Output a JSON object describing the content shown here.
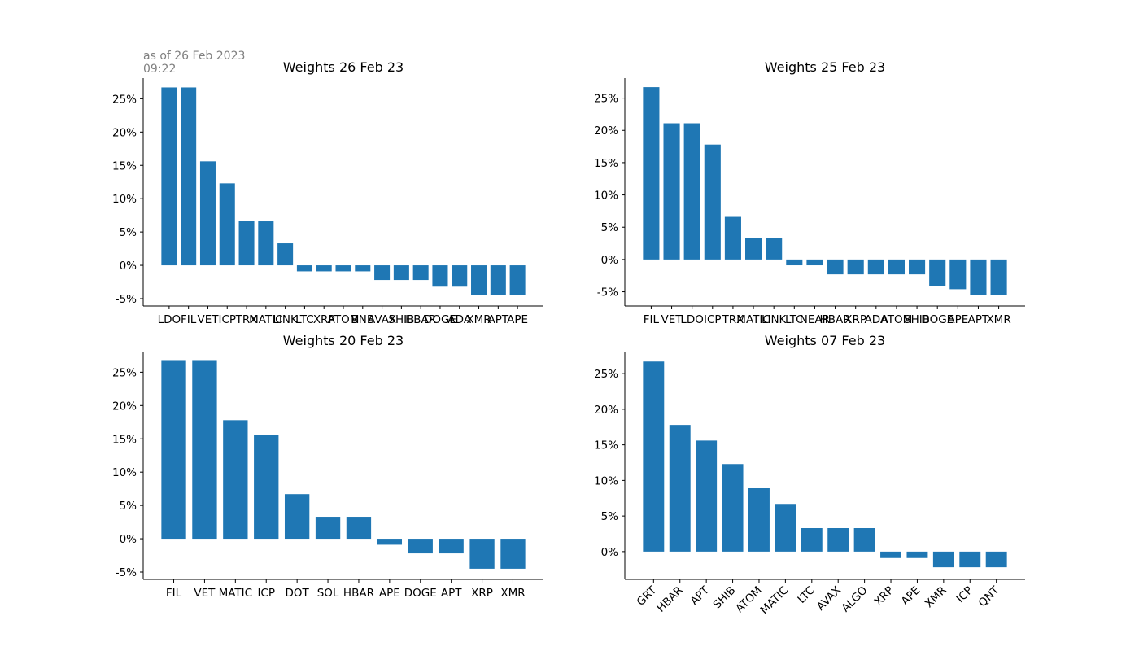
{
  "annotation": {
    "line1": "as of 26 Feb 2023",
    "line2": "09:22"
  },
  "style": {
    "bar_color": "#1f77b4",
    "axis_color": "#000000",
    "annotation_color": "#808080"
  },
  "chart_data": [
    {
      "type": "bar",
      "title": "Weights 26 Feb 23",
      "categories": [
        "LDO",
        "FIL",
        "VET",
        "ICP",
        "TRX",
        "MATIC",
        "LINK",
        "LTC",
        "XRP",
        "ATOM",
        "BNB",
        "AVAX",
        "SHIB",
        "HBAR",
        "DOGE",
        "ADA",
        "XMR",
        "APT",
        "APE"
      ],
      "values": [
        26.7,
        26.7,
        15.6,
        12.3,
        6.7,
        6.6,
        3.3,
        -0.9,
        -0.9,
        -0.9,
        -0.9,
        -2.2,
        -2.2,
        -2.2,
        -3.2,
        -3.2,
        -4.5,
        -4.5,
        -4.5
      ],
      "ylim": [
        -6.1,
        28.1
      ],
      "yticks": [
        -5,
        0,
        5,
        10,
        15,
        20,
        25
      ],
      "ytick_labels": [
        "-5%",
        "0%",
        "5%",
        "10%",
        "15%",
        "20%",
        "25%"
      ],
      "xlabel_rotation": 0,
      "xlabel": "",
      "ylabel": "",
      "grid": false,
      "legend": "none"
    },
    {
      "type": "bar",
      "title": "Weights 25 Feb 23",
      "categories": [
        "FIL",
        "VET",
        "LDO",
        "ICP",
        "TRX",
        "MATIC",
        "LINK",
        "LTC",
        "NEAR",
        "HBAR",
        "XRP",
        "ADA",
        "ATOM",
        "SHIB",
        "DOGE",
        "APE",
        "APT",
        "XMR"
      ],
      "values": [
        26.7,
        21.1,
        21.1,
        17.8,
        6.6,
        3.3,
        3.3,
        -0.9,
        -0.9,
        -2.3,
        -2.3,
        -2.3,
        -2.3,
        -2.3,
        -4.1,
        -4.6,
        -5.5,
        -5.5
      ],
      "ylim": [
        -7.2,
        28.1
      ],
      "yticks": [
        -5,
        0,
        5,
        10,
        15,
        20,
        25
      ],
      "ytick_labels": [
        "-5%",
        "0%",
        "5%",
        "10%",
        "15%",
        "20%",
        "25%"
      ],
      "xlabel_rotation": 0,
      "xlabel": "",
      "ylabel": "",
      "grid": false,
      "legend": "none"
    },
    {
      "type": "bar",
      "title": "Weights 20 Feb 23",
      "categories": [
        "FIL",
        "VET",
        "MATIC",
        "ICP",
        "DOT",
        "SOL",
        "HBAR",
        "APE",
        "DOGE",
        "APT",
        "XRP",
        "XMR"
      ],
      "values": [
        26.7,
        26.7,
        17.8,
        15.6,
        6.7,
        3.3,
        3.3,
        -0.9,
        -2.2,
        -2.2,
        -4.5,
        -4.5
      ],
      "ylim": [
        -6.1,
        28.1
      ],
      "yticks": [
        -5,
        0,
        5,
        10,
        15,
        20,
        25
      ],
      "ytick_labels": [
        "-5%",
        "0%",
        "5%",
        "10%",
        "15%",
        "20%",
        "25%"
      ],
      "xlabel_rotation": 0,
      "xlabel": "",
      "ylabel": "",
      "grid": false,
      "legend": "none"
    },
    {
      "type": "bar",
      "title": "Weights 07 Feb 23",
      "categories": [
        "GRT",
        "HBAR",
        "APT",
        "SHIB",
        "ATOM",
        "MATIC",
        "LTC",
        "AVAX",
        "ALGO",
        "XRP",
        "APE",
        "XMR",
        "ICP",
        "QNT"
      ],
      "values": [
        26.7,
        17.8,
        15.6,
        12.3,
        8.9,
        6.7,
        3.3,
        3.3,
        3.3,
        -0.9,
        -0.9,
        -2.2,
        -2.2,
        -2.2
      ],
      "ylim": [
        -3.9,
        28.1
      ],
      "yticks": [
        0,
        5,
        10,
        15,
        20,
        25
      ],
      "ytick_labels": [
        "0%",
        "5%",
        "10%",
        "15%",
        "20%",
        "25%"
      ],
      "xlabel_rotation": -45,
      "xlabel": "",
      "ylabel": "",
      "grid": false,
      "legend": "none"
    }
  ]
}
